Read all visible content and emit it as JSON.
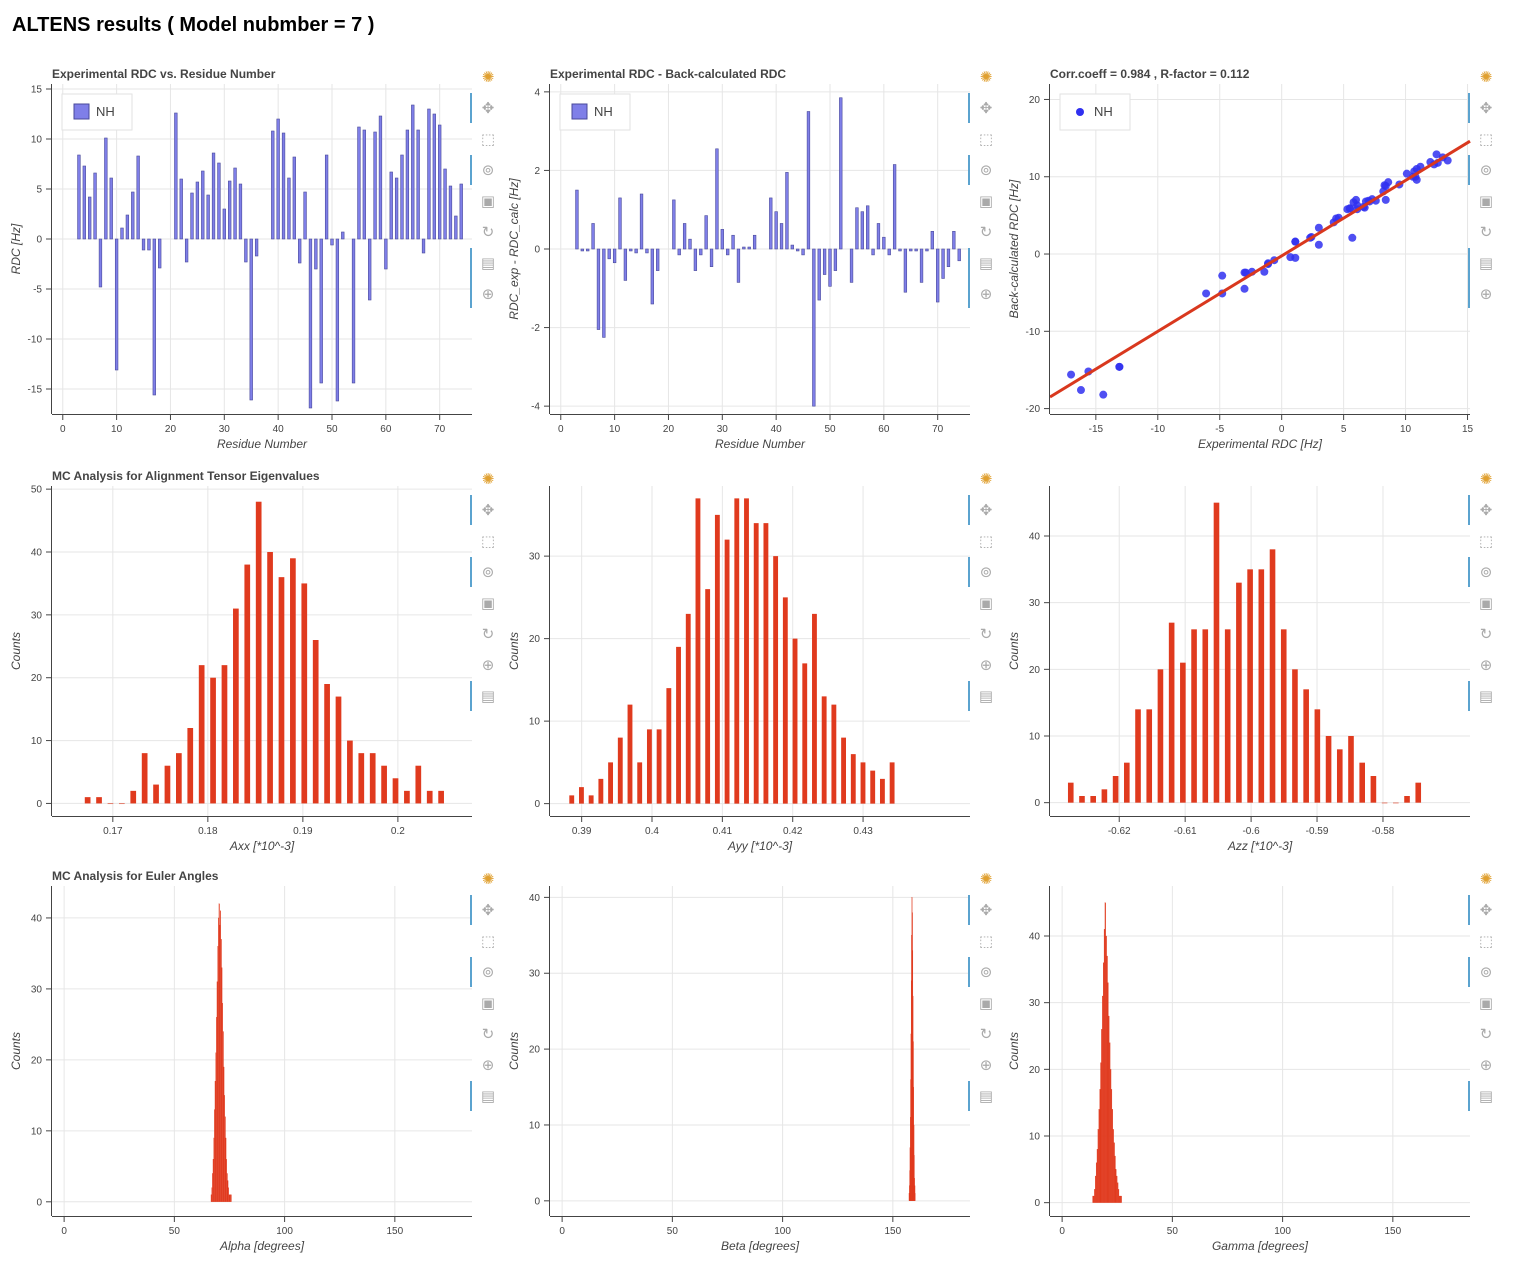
{
  "page_title": "ALTENS results ( Model nubmber = 7 )",
  "toolbar": {
    "tools": [
      "logo-icon",
      "pan-icon",
      "box-zoom-icon",
      "wheel-zoom-icon",
      "save-icon",
      "reset-icon",
      "crosshair-icon",
      "hover-icon"
    ]
  },
  "colors": {
    "bar_blue": "#7f7fe8",
    "bar_red": "#e03a1e",
    "scatter_blue": "#3030f0",
    "fit_line": "#d9381e"
  },
  "chart_data": [
    {
      "id": "rdc-vs-residue",
      "type": "bar",
      "title": "Experimental RDC vs. Residue Number",
      "xlabel": "Residue Number",
      "ylabel": "RDC [Hz]",
      "xlim": [
        -2,
        76
      ],
      "ylim": [
        -17.5,
        15.5
      ],
      "xticks": [
        0,
        10,
        20,
        30,
        40,
        50,
        60,
        70
      ],
      "yticks": [
        -15,
        -10,
        -5,
        0,
        5,
        10,
        15
      ],
      "bar_width": 0.5,
      "color": "#7f7fe8",
      "legend": "NH",
      "legend_kind": "box",
      "x": [
        3,
        4,
        5,
        6,
        7,
        8,
        9,
        10,
        11,
        12,
        13,
        14,
        15,
        16,
        17,
        18,
        21,
        22,
        23,
        24,
        25,
        26,
        27,
        28,
        29,
        30,
        31,
        32,
        33,
        34,
        35,
        36,
        39,
        40,
        41,
        42,
        43,
        44,
        45,
        46,
        47,
        48,
        49,
        50,
        51,
        52,
        54,
        55,
        56,
        57,
        58,
        59,
        60,
        61,
        62,
        63,
        64,
        65,
        66,
        67,
        68,
        69,
        70,
        71,
        72,
        73,
        74
      ],
      "values": [
        8.4,
        7.3,
        4.2,
        6.6,
        -4.8,
        10.1,
        6.1,
        -13.1,
        1.1,
        2.4,
        4.7,
        8.3,
        -1.1,
        -1.1,
        -15.6,
        -2.9,
        12.6,
        6.0,
        -2.3,
        4.6,
        5.7,
        6.8,
        4.4,
        8.6,
        7.6,
        3.0,
        5.8,
        7.1,
        5.5,
        -2.3,
        -16.1,
        -1.7,
        10.8,
        12.0,
        10.6,
        6.1,
        8.2,
        -2.4,
        4.7,
        -16.9,
        -3.0,
        -14.4,
        8.4,
        -0.6,
        -16.2,
        0.7,
        -14.4,
        11.2,
        10.9,
        -6.1,
        10.7,
        12.3,
        -3.0,
        6.7,
        6.1,
        8.4,
        10.9,
        13.4,
        10.9,
        -1.4,
        13.0,
        12.5,
        11.4,
        7.0,
        5.3,
        2.3,
        5.5
      ]
    },
    {
      "id": "rdc-diff",
      "type": "bar",
      "title": "Experimental RDC - Back-calculated RDC",
      "xlabel": "Residue Number",
      "ylabel": "RDC_exp - RDC_calc [Hz]",
      "xlim": [
        -2,
        76
      ],
      "ylim": [
        -4.2,
        4.2
      ],
      "xticks": [
        0,
        10,
        20,
        30,
        40,
        50,
        60,
        70
      ],
      "yticks": [
        -4,
        -2,
        0,
        2,
        4
      ],
      "bar_width": 0.5,
      "color": "#7f7fe8",
      "legend": "NH",
      "legend_kind": "box",
      "x": [
        3,
        4,
        5,
        6,
        7,
        8,
        9,
        10,
        11,
        12,
        13,
        14,
        15,
        16,
        17,
        18,
        21,
        22,
        23,
        24,
        25,
        26,
        27,
        28,
        29,
        30,
        31,
        32,
        33,
        34,
        35,
        36,
        39,
        40,
        41,
        42,
        43,
        44,
        45,
        46,
        47,
        48,
        49,
        50,
        51,
        52,
        54,
        55,
        56,
        57,
        58,
        59,
        60,
        61,
        62,
        63,
        64,
        65,
        66,
        67,
        68,
        69,
        70,
        71,
        72,
        73,
        74
      ],
      "values": [
        1.5,
        -0.05,
        -0.05,
        0.65,
        -2.05,
        -2.25,
        -0.25,
        -0.35,
        1.3,
        -0.8,
        -0.05,
        -0.1,
        1.4,
        -0.1,
        -1.4,
        -0.55,
        1.25,
        -0.15,
        0.65,
        0.25,
        -0.55,
        -0.15,
        0.85,
        -0.45,
        2.55,
        0.5,
        -0.15,
        0.35,
        -0.85,
        0.05,
        0.05,
        0.35,
        1.3,
        0.95,
        0.65,
        1.95,
        0.1,
        -0.05,
        -0.15,
        3.5,
        -4.0,
        -1.3,
        -0.65,
        -0.95,
        -0.55,
        3.85,
        -0.85,
        1.05,
        0.95,
        1.1,
        -0.15,
        0.65,
        0.3,
        -0.15,
        2.15,
        -0.05,
        -1.1,
        -0.05,
        -0.05,
        -0.85,
        -0.05,
        0.45,
        -1.35,
        -0.75,
        -0.45,
        0.45,
        -0.3
      ]
    },
    {
      "id": "corr-scatter",
      "type": "scatter",
      "title": "Corr.coeff = 0.984 , R-factor = 0.112",
      "xlabel": "Experimental RDC [Hz]",
      "ylabel": "Back-calculated RDC [Hz]",
      "xlim": [
        -18.7,
        15.2
      ],
      "ylim": [
        -20.7,
        22
      ],
      "xticks": [
        -15,
        -10,
        -5,
        0,
        5,
        10,
        15
      ],
      "yticks": [
        -20,
        -10,
        0,
        10,
        20
      ],
      "color": "#3030f0",
      "legend": "NH",
      "legend_kind": "dot",
      "fit_line": {
        "x": [
          -18.7,
          15.2
        ],
        "y": [
          -18.5,
          14.6
        ],
        "color": "#d9381e"
      },
      "points": [
        [
          -17,
          -15.6
        ],
        [
          -16.2,
          -17.6
        ],
        [
          -15.6,
          -15.2
        ],
        [
          -14.4,
          -18.2
        ],
        [
          -13.1,
          -14.6
        ],
        [
          -6.1,
          -5.1
        ],
        [
          -4.8,
          -2.8
        ],
        [
          -4.8,
          -5.1
        ],
        [
          -3,
          -4.5
        ],
        [
          -3,
          -2.4
        ],
        [
          -2.9,
          -2.4
        ],
        [
          -2.4,
          -2.3
        ],
        [
          -1.4,
          -2.3
        ],
        [
          -1.1,
          -1.2
        ],
        [
          -1.1,
          -1.3
        ],
        [
          -0.6,
          -0.8
        ],
        [
          0.7,
          -0.4
        ],
        [
          1.1,
          1.6
        ],
        [
          1.1,
          -0.5
        ],
        [
          2.4,
          2.2
        ],
        [
          3,
          1.2
        ],
        [
          3.0,
          3.4
        ],
        [
          4.2,
          4.1
        ],
        [
          4.4,
          4.6
        ],
        [
          4.6,
          4.7
        ],
        [
          5.7,
          2.1
        ],
        [
          5.5,
          5.9
        ],
        [
          5.5,
          5.9
        ],
        [
          6.1,
          6.3
        ],
        [
          5.8,
          6.7
        ],
        [
          6.0,
          7.0
        ],
        [
          6.1,
          5.8
        ],
        [
          6.6,
          6.1
        ],
        [
          6.8,
          6.8
        ],
        [
          7.1,
          6.8
        ],
        [
          7.3,
          7.1
        ],
        [
          7.0,
          6.9
        ],
        [
          8.2,
          8.1
        ],
        [
          8.4,
          7.0
        ],
        [
          8.3,
          8.9
        ],
        [
          8.4,
          8.8
        ],
        [
          8.6,
          9.3
        ],
        [
          10.1,
          10.4
        ],
        [
          10.6,
          10.0
        ],
        [
          10.8,
          10.0
        ],
        [
          10.9,
          9.6
        ],
        [
          10.9,
          11.0
        ],
        [
          11.2,
          11.3
        ],
        [
          12.0,
          11.9
        ],
        [
          12.3,
          11.6
        ],
        [
          12.6,
          11.8
        ],
        [
          13.0,
          12.5
        ],
        [
          13.4,
          12.1
        ],
        [
          12.5,
          12.9
        ],
        [
          10.7,
          10.7
        ],
        [
          9.5,
          9.0
        ],
        [
          7.6,
          6.9
        ],
        [
          6.7,
          6.0
        ],
        [
          5.3,
          5.8
        ],
        [
          1.1,
          1.6
        ],
        [
          2.3,
          2.1
        ],
        [
          -13.1,
          -14.6
        ]
      ]
    },
    {
      "id": "hist-axx",
      "type": "bar",
      "title": "MC Analysis for Alignment Tensor Eigenvalues",
      "xlabel": "Axx [*10^-3]",
      "ylabel": "Counts",
      "xlim": [
        0.1636,
        0.2078
      ],
      "ylim": [
        -2,
        50.5
      ],
      "xticks": [
        0.17,
        0.18,
        0.19,
        0.2
      ],
      "xtick_labels": [
        "0.17",
        "0.18",
        "0.19",
        "0.2"
      ],
      "yticks": [
        0,
        10,
        20,
        30,
        40,
        50
      ],
      "color": "#e03a1e",
      "bin_start": 0.16675,
      "bin_step": 0.0012,
      "bar_frac": 0.5,
      "values": [
        1,
        1,
        0,
        0,
        2,
        8,
        3,
        6,
        8,
        12,
        22,
        20,
        22,
        31,
        38,
        48,
        40,
        36,
        39,
        35,
        26,
        19,
        17,
        10,
        8,
        8,
        6,
        4,
        2,
        6,
        2,
        2
      ]
    },
    {
      "id": "hist-ayy",
      "type": "bar",
      "title": "",
      "xlabel": "Ayy [*10^-3]",
      "ylabel": "Counts",
      "xlim": [
        0.3855,
        0.4452
      ],
      "ylim": [
        -1.5,
        38.5
      ],
      "xticks": [
        0.39,
        0.4,
        0.41,
        0.42,
        0.43
      ],
      "xtick_labels": [
        "0.39",
        "0.4",
        "0.41",
        "0.42",
        "0.43"
      ],
      "yticks": [
        0,
        10,
        20,
        30
      ],
      "color": "#e03a1e",
      "bin_start": 0.3879,
      "bin_step": 0.00138,
      "bar_frac": 0.5,
      "values": [
        1,
        2,
        1,
        3,
        5,
        8,
        12,
        5,
        9,
        9,
        14,
        19,
        23,
        37,
        26,
        35,
        32,
        37,
        37,
        34,
        34,
        30,
        25,
        20,
        17,
        23,
        13,
        12,
        8,
        6,
        5,
        4,
        3,
        5
      ]
    },
    {
      "id": "hist-azz",
      "type": "bar",
      "title": "",
      "xlabel": "Azz [*10^-3]",
      "ylabel": "Counts",
      "xlim": [
        -0.6305,
        -0.5668
      ],
      "ylim": [
        -2,
        47.5
      ],
      "xticks": [
        -0.62,
        -0.61,
        -0.6,
        -0.59,
        -0.58
      ],
      "xtick_labels": [
        "-0.62",
        "-0.61",
        "-0.6",
        "-0.59",
        "-0.58"
      ],
      "yticks": [
        0,
        10,
        20,
        30,
        40
      ],
      "color": "#e03a1e",
      "bin_start": -0.6282,
      "bin_step": 0.0017,
      "bar_frac": 0.5,
      "values": [
        3,
        1,
        1,
        2,
        4,
        6,
        14,
        14,
        20,
        27,
        21,
        26,
        26,
        45,
        26,
        33,
        35,
        35,
        38,
        26,
        20,
        17,
        14,
        10,
        8,
        10,
        6,
        4,
        0,
        0,
        1,
        3
      ]
    },
    {
      "id": "hist-alpha",
      "type": "histogram",
      "title": "MC Analysis for Euler Angles",
      "xlabel": "Alpha [degrees]",
      "ylabel": "Counts",
      "xlim": [
        -5.5,
        185
      ],
      "ylim": [
        -2,
        44.5
      ],
      "xticks": [
        0,
        50,
        100,
        150
      ],
      "yticks": [
        0,
        10,
        20,
        30,
        40
      ],
      "color": "#e03a1e",
      "bin_start": 66.6,
      "bin_step": 0.3,
      "values": [
        1,
        2,
        4,
        6,
        9,
        13,
        17,
        21,
        26,
        31,
        36,
        40,
        42,
        39,
        41,
        37,
        33,
        28,
        24,
        19,
        15,
        12,
        9,
        6,
        4,
        3,
        2,
        1,
        1,
        1,
        1
      ]
    },
    {
      "id": "hist-beta",
      "type": "histogram",
      "title": "",
      "xlabel": "Beta [degrees]",
      "ylabel": "Counts",
      "xlim": [
        -5.5,
        185
      ],
      "ylim": [
        -2,
        41.5
      ],
      "xticks": [
        0,
        50,
        100,
        150
      ],
      "yticks": [
        0,
        10,
        20,
        30,
        40
      ],
      "color": "#e03a1e",
      "bin_start": 157.3,
      "bin_step": 0.14,
      "values": [
        1,
        2,
        4,
        7,
        11,
        16,
        22,
        29,
        35,
        40,
        38,
        33,
        27,
        21,
        15,
        10,
        6,
        3,
        2,
        1
      ]
    },
    {
      "id": "hist-gamma",
      "type": "histogram",
      "title": "",
      "xlabel": "Gamma [degrees]",
      "ylabel": "Counts",
      "xlim": [
        -5.5,
        185
      ],
      "ylim": [
        -2,
        47.5
      ],
      "xticks": [
        0,
        50,
        100,
        150
      ],
      "yticks": [
        0,
        10,
        20,
        30,
        40
      ],
      "color": "#e03a1e",
      "bin_start": 13.8,
      "bin_step": 0.4,
      "values": [
        1,
        1,
        2,
        4,
        6,
        8,
        11,
        14,
        17,
        21,
        26,
        31,
        36,
        41,
        45,
        40,
        37,
        33,
        28,
        24,
        20,
        17,
        14,
        11,
        9,
        7,
        5,
        4,
        3,
        2,
        1,
        1,
        1
      ]
    }
  ]
}
